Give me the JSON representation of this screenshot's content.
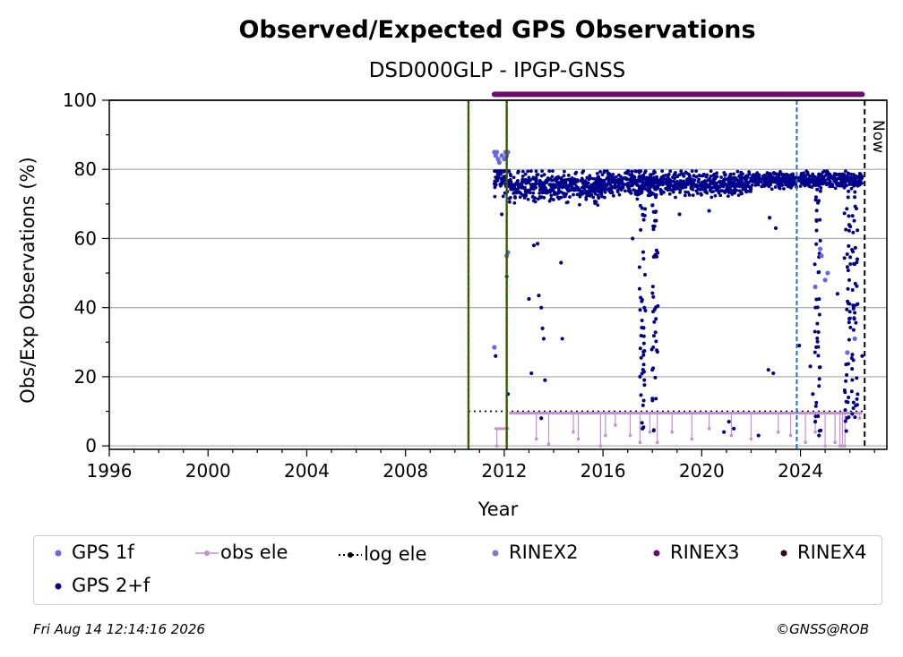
{
  "title": "Observed/Expected GPS Observations",
  "subtitle": "DSD000GLP - IPGP-GNSS",
  "footer": {
    "timestamp": "Fri Aug 14 12:14:16 2026",
    "credit": "©GNSS@ROB"
  },
  "now_label": "Now",
  "legend": [
    {
      "label": "GPS 1f",
      "color": "#6666ee",
      "style": "dot"
    },
    {
      "label": "obs ele",
      "color": "#c58fd3",
      "style": "line-dot"
    },
    {
      "label": "log ele",
      "color": "#000000",
      "style": "dotted-dot"
    },
    {
      "label": "RINEX2",
      "color": "#8878c0",
      "style": "dot"
    },
    {
      "label": "RINEX3",
      "color": "#6a0d6e",
      "style": "dot"
    },
    {
      "label": "RINEX4",
      "color": "#2a0a26",
      "style": "dot"
    },
    {
      "label": "GPS 2+f",
      "color": "#00008b",
      "style": "dot"
    }
  ],
  "chart_data": {
    "type": "scatter",
    "title": "Observed/Expected GPS Observations",
    "subtitle": "DSD000GLP - IPGP-GNSS",
    "xlabel": "Year",
    "ylabel": "Obs/Exp Observations (%)",
    "xlim": [
      1996,
      2027.5
    ],
    "ylim": [
      -1,
      100
    ],
    "xticks": [
      1996,
      2000,
      2004,
      2008,
      2012,
      2016,
      2020,
      2024
    ],
    "yticks": [
      0,
      20,
      40,
      60,
      80,
      100
    ],
    "grid": "horizontal",
    "legend_position": "bottom",
    "vertical_lines": [
      {
        "x": 2010.55,
        "style": "green-red-dashed"
      },
      {
        "x": 2012.1,
        "style": "green-red-dashed"
      },
      {
        "x": 2023.85,
        "style": "blue-dashed"
      },
      {
        "x": 2026.6,
        "style": "black-dashed",
        "label": "Now"
      }
    ],
    "series": [
      {
        "name": "GPS 2+f",
        "color": "#00008b",
        "segments": [
          {
            "x_start": 2011.6,
            "x_end": 2012.2,
            "mean": 78,
            "spread": 4
          },
          {
            "x_start": 2012.2,
            "x_end": 2016.0,
            "mean": 75,
            "spread": 3
          },
          {
            "x_start": 2016.0,
            "x_end": 2022.0,
            "mean": 76,
            "spread": 2.5
          },
          {
            "x_start": 2022.0,
            "x_end": 2026.5,
            "mean": 77,
            "spread": 1.5
          }
        ],
        "outliers": [
          [
            2011.65,
            26
          ],
          [
            2011.9,
            67
          ],
          [
            2012.1,
            49
          ],
          [
            2012.15,
            15
          ],
          [
            2013.0,
            42.5
          ],
          [
            2013.2,
            58
          ],
          [
            2013.35,
            58.5
          ],
          [
            2013.4,
            43.5
          ],
          [
            2013.5,
            40
          ],
          [
            2013.55,
            34
          ],
          [
            2013.6,
            31
          ],
          [
            2013.65,
            19
          ],
          [
            2013.5,
            8
          ],
          [
            2013.1,
            21
          ],
          [
            2014.3,
            53
          ],
          [
            2014.35,
            31
          ],
          [
            2017.2,
            60
          ],
          [
            2017.5,
            20
          ],
          [
            2017.6,
            5
          ],
          [
            2019.1,
            67
          ],
          [
            2020.3,
            68
          ],
          [
            2020.9,
            4
          ],
          [
            2021.1,
            7
          ],
          [
            2021.3,
            5
          ],
          [
            2022.3,
            3
          ],
          [
            2022.7,
            22
          ],
          [
            2022.75,
            66
          ],
          [
            2022.9,
            21
          ],
          [
            2023.0,
            63
          ],
          [
            2023.95,
            29
          ],
          [
            2024.4,
            23
          ],
          [
            2024.5,
            15
          ],
          [
            2024.6,
            7
          ],
          [
            2024.75,
            3
          ],
          [
            2025.5,
            44
          ],
          [
            2026.3,
            54
          ],
          [
            2026.5,
            26
          ]
        ],
        "dropouts": [
          {
            "x": 2017.6,
            "y_min": 5,
            "y_max": 78
          },
          {
            "x": 2018.1,
            "y_min": 4,
            "y_max": 78
          },
          {
            "x": 2024.7,
            "y_min": 2,
            "y_max": 79
          },
          {
            "x": 2025.9,
            "y_min": 4,
            "y_max": 79
          },
          {
            "x": 2026.2,
            "y_min": 6,
            "y_max": 78
          }
        ]
      },
      {
        "name": "GPS 1f",
        "color": "#6666ee",
        "points": [
          [
            2011.6,
            85
          ],
          [
            2011.65,
            84
          ],
          [
            2011.7,
            85
          ],
          [
            2011.75,
            83
          ],
          [
            2011.8,
            82
          ],
          [
            2011.9,
            84
          ],
          [
            2012.0,
            83
          ],
          [
            2012.05,
            85
          ],
          [
            2012.1,
            84
          ],
          [
            2012.15,
            85
          ],
          [
            2011.6,
            28.5
          ],
          [
            2012.15,
            56
          ],
          [
            2012.1,
            55
          ],
          [
            2024.8,
            57
          ],
          [
            2024.85,
            55
          ],
          [
            2025.0,
            48
          ],
          [
            2025.1,
            50
          ],
          [
            2024.6,
            46
          ],
          [
            2025.9,
            27
          ],
          [
            2026.2,
            31
          ]
        ]
      },
      {
        "name": "obs ele",
        "color": "#c58fd3",
        "segments": [
          {
            "x_start": 2011.6,
            "x_end": 2012.2,
            "value": 5
          },
          {
            "x_start": 2012.2,
            "x_end": 2026.5,
            "value": 9.5
          }
        ],
        "dips": [
          [
            2011.7,
            0
          ],
          [
            2013.3,
            2
          ],
          [
            2013.8,
            0.5
          ],
          [
            2014.8,
            4
          ],
          [
            2015.0,
            2
          ],
          [
            2015.9,
            0
          ],
          [
            2016.1,
            3
          ],
          [
            2016.5,
            6
          ],
          [
            2017.1,
            3
          ],
          [
            2017.5,
            1
          ],
          [
            2017.9,
            4
          ],
          [
            2018.2,
            1
          ],
          [
            2018.8,
            4
          ],
          [
            2019.6,
            2
          ],
          [
            2020.3,
            5
          ],
          [
            2021.2,
            3
          ],
          [
            2022.0,
            2
          ],
          [
            2023.1,
            4
          ],
          [
            2023.6,
            3
          ],
          [
            2024.2,
            1
          ],
          [
            2024.6,
            4
          ],
          [
            2025.0,
            0
          ],
          [
            2025.4,
            1
          ],
          [
            2025.6,
            0
          ],
          [
            2025.7,
            0
          ],
          [
            2025.8,
            0
          ],
          [
            2026.4,
            8
          ]
        ]
      },
      {
        "name": "log ele",
        "color": "#000000",
        "segments": [
          {
            "x_start": 2010.55,
            "x_end": 2026.6,
            "value": 10
          }
        ]
      },
      {
        "name": "RINEX3",
        "color": "#6a0d6e",
        "segments": [
          {
            "x_start": 2011.6,
            "x_end": 2026.5,
            "value": 101.7
          }
        ]
      }
    ]
  }
}
